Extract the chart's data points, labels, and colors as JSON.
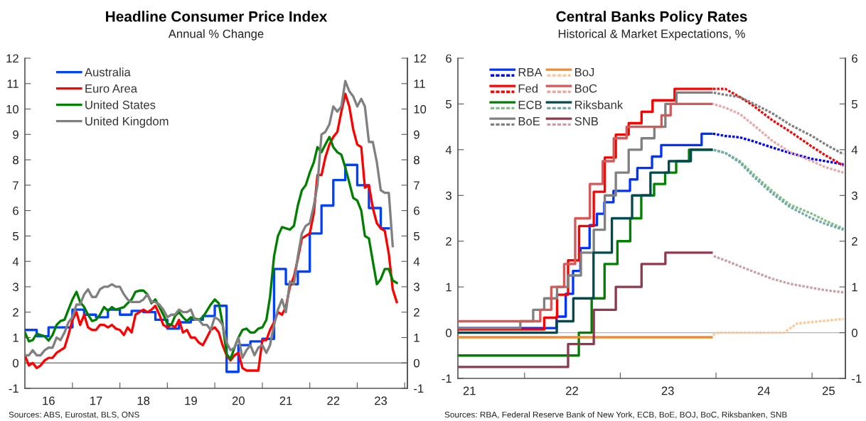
{
  "chart_data": [
    {
      "type": "line",
      "title": "Headline Consumer Price Index",
      "subtitle": "Annual % Change",
      "x": [
        "2016-01",
        "2016-02",
        "2016-03",
        "2016-04",
        "2016-05",
        "2016-06",
        "2016-07",
        "2016-08",
        "2016-09",
        "2016-10",
        "2016-11",
        "2016-12",
        "2017-01",
        "2017-02",
        "2017-03",
        "2017-04",
        "2017-05",
        "2017-06",
        "2017-07",
        "2017-08",
        "2017-09",
        "2017-10",
        "2017-11",
        "2017-12",
        "2018-01",
        "2018-02",
        "2018-03",
        "2018-04",
        "2018-05",
        "2018-06",
        "2018-07",
        "2018-08",
        "2018-09",
        "2018-10",
        "2018-11",
        "2018-12",
        "2019-01",
        "2019-02",
        "2019-03",
        "2019-04",
        "2019-05",
        "2019-06",
        "2019-07",
        "2019-08",
        "2019-09",
        "2019-10",
        "2019-11",
        "2019-12",
        "2020-01",
        "2020-02",
        "2020-03",
        "2020-04",
        "2020-05",
        "2020-06",
        "2020-07",
        "2020-08",
        "2020-09",
        "2020-10",
        "2020-11",
        "2020-12",
        "2021-01",
        "2021-02",
        "2021-03",
        "2021-04",
        "2021-05",
        "2021-06",
        "2021-07",
        "2021-08",
        "2021-09",
        "2021-10",
        "2021-11",
        "2021-12",
        "2022-01",
        "2022-02",
        "2022-03",
        "2022-04",
        "2022-05",
        "2022-06",
        "2022-07",
        "2022-08",
        "2022-09",
        "2022-10",
        "2022-11",
        "2022-12",
        "2023-01",
        "2023-02",
        "2023-03",
        "2023-04",
        "2023-05",
        "2023-06",
        "2023-07",
        "2023-08",
        "2023-09",
        "2023-10",
        "2023-11"
      ],
      "series": [
        {
          "name": "Australia",
          "color": "#0040ff",
          "type": "step",
          "x": [
            "2016-01",
            "2016-04",
            "2016-07",
            "2016-10",
            "2017-01",
            "2017-04",
            "2017-07",
            "2017-10",
            "2018-01",
            "2018-04",
            "2018-07",
            "2018-10",
            "2019-01",
            "2019-04",
            "2019-07",
            "2019-10",
            "2020-01",
            "2020-04",
            "2020-07",
            "2020-10",
            "2021-01",
            "2021-04",
            "2021-07",
            "2021-10",
            "2022-01",
            "2022-04",
            "2022-07",
            "2022-10",
            "2023-01",
            "2023-04",
            "2023-07",
            "2023-09"
          ],
          "values": [
            1.3,
            1.05,
            1.4,
            1.4,
            2.1,
            1.9,
            1.8,
            2.1,
            1.9,
            2.05,
            2.0,
            1.7,
            1.35,
            1.6,
            1.7,
            1.85,
            2.25,
            -0.35,
            0.7,
            0.85,
            0.95,
            3.7,
            3.1,
            3.6,
            5.1,
            6.2,
            7.2,
            7.8,
            7.0,
            6.1,
            5.3,
            5.3
          ]
        },
        {
          "name": "Euro Area",
          "color": "#ff0000",
          "values": [
            0.3,
            -0.1,
            0.0,
            -0.2,
            -0.1,
            0.1,
            0.2,
            0.2,
            0.4,
            0.5,
            0.6,
            1.1,
            1.7,
            2.0,
            1.5,
            1.9,
            1.4,
            1.3,
            1.3,
            1.5,
            1.5,
            1.4,
            1.5,
            1.35,
            1.3,
            1.1,
            1.4,
            1.2,
            1.9,
            2.0,
            2.1,
            2.0,
            2.1,
            2.25,
            1.9,
            1.5,
            1.4,
            1.5,
            1.4,
            1.7,
            1.2,
            1.3,
            1.0,
            1.0,
            0.8,
            0.7,
            1.0,
            1.3,
            1.4,
            1.2,
            0.7,
            0.3,
            0.1,
            0.3,
            0.4,
            -0.2,
            -0.3,
            -0.3,
            -0.3,
            -0.3,
            0.9,
            0.9,
            1.3,
            1.6,
            2.0,
            1.9,
            2.2,
            3.0,
            3.4,
            4.1,
            4.9,
            5.0,
            5.1,
            5.9,
            7.4,
            7.4,
            8.1,
            8.6,
            8.9,
            9.1,
            9.9,
            10.6,
            10.1,
            9.2,
            8.6,
            8.5,
            6.9,
            7.0,
            6.1,
            5.5,
            5.3,
            5.2,
            4.3,
            2.9,
            2.4
          ]
        },
        {
          "name": "United States",
          "color": "#008000",
          "values": [
            1.2,
            0.85,
            0.9,
            1.15,
            1.1,
            1.05,
            0.88,
            1.1,
            1.5,
            1.65,
            1.7,
            2.1,
            2.5,
            2.8,
            2.4,
            2.2,
            1.9,
            1.65,
            1.7,
            1.9,
            2.2,
            2.05,
            2.2,
            2.1,
            2.15,
            2.2,
            2.35,
            2.5,
            2.8,
            2.85,
            2.85,
            2.7,
            2.35,
            2.5,
            2.2,
            1.9,
            1.55,
            1.5,
            1.85,
            2.0,
            1.8,
            1.65,
            1.8,
            1.75,
            1.7,
            1.8,
            2.05,
            2.3,
            2.5,
            2.35,
            1.55,
            0.35,
            0.15,
            0.6,
            1.0,
            1.3,
            1.35,
            1.2,
            1.2,
            1.35,
            1.4,
            1.7,
            2.6,
            4.2,
            5.0,
            5.35,
            5.3,
            5.25,
            5.4,
            6.2,
            6.8,
            7.0,
            7.5,
            7.9,
            8.5,
            8.3,
            8.6,
            8.9,
            8.5,
            8.3,
            8.2,
            7.7,
            7.1,
            6.5,
            6.4,
            6.0,
            5.0,
            4.9,
            4.0,
            3.1,
            3.3,
            3.7,
            3.7,
            3.25,
            3.15
          ]
        },
        {
          "name": "United Kingdom",
          "color": "#808080",
          "values": [
            0.3,
            0.3,
            0.5,
            0.3,
            0.3,
            0.5,
            0.6,
            0.6,
            1.0,
            0.9,
            1.2,
            1.6,
            1.8,
            2.3,
            2.3,
            2.7,
            2.9,
            2.6,
            2.6,
            2.9,
            3.0,
            3.0,
            3.1,
            3.0,
            3.0,
            2.7,
            2.5,
            2.4,
            2.4,
            2.4,
            2.5,
            2.7,
            2.4,
            2.4,
            2.3,
            2.1,
            1.8,
            1.9,
            1.9,
            2.1,
            2.0,
            2.0,
            2.1,
            1.7,
            1.7,
            1.5,
            1.5,
            1.3,
            1.8,
            1.7,
            1.5,
            0.8,
            0.5,
            0.6,
            1.0,
            0.2,
            0.5,
            0.7,
            0.3,
            0.6,
            0.7,
            0.4,
            0.7,
            1.5,
            2.1,
            2.5,
            2.0,
            3.2,
            3.1,
            4.2,
            5.1,
            5.4,
            5.5,
            6.2,
            7.0,
            9.0,
            9.1,
            9.4,
            10.1,
            9.9,
            10.1,
            11.1,
            10.7,
            10.5,
            10.1,
            10.4,
            10.1,
            8.7,
            8.7,
            7.9,
            6.8,
            6.7,
            6.7,
            4.6,
            null
          ]
        }
      ],
      "xlim": [
        "2016-01-01",
        "2024-01-22"
      ],
      "xticks": [
        {
          "value": "2016-07-01",
          "label": "16"
        },
        {
          "value": "2017-01-01",
          "label": null
        },
        {
          "value": "2017-07-01",
          "label": "17"
        },
        {
          "value": "2018-01-01",
          "label": null
        },
        {
          "value": "2018-07-01",
          "label": "18"
        },
        {
          "value": "2019-01-01",
          "label": null
        },
        {
          "value": "2019-07-01",
          "label": "19"
        },
        {
          "value": "2020-01-01",
          "label": null
        },
        {
          "value": "2020-07-01",
          "label": "20"
        },
        {
          "value": "2021-01-01",
          "label": null
        },
        {
          "value": "2021-07-01",
          "label": "21"
        },
        {
          "value": "2022-01-01",
          "label": null
        },
        {
          "value": "2022-07-01",
          "label": "22"
        },
        {
          "value": "2023-01-01",
          "label": null
        },
        {
          "value": "2023-07-01",
          "label": "23"
        },
        {
          "value": "2024-01-01",
          "label": null
        }
      ],
      "ylim": [
        -1,
        12
      ],
      "yticks": [
        -1,
        0,
        1,
        2,
        3,
        4,
        5,
        6,
        7,
        8,
        9,
        10,
        11,
        12
      ],
      "y2lim": [
        -1,
        12
      ],
      "y2ticks": [
        -1,
        0,
        1,
        2,
        3,
        4,
        5,
        6,
        7,
        8,
        9,
        10,
        11,
        12
      ],
      "ref_lines": [
        {
          "axis": "y",
          "value": 0,
          "color": "#808080"
        }
      ],
      "legend": "top left",
      "line_style": "solid",
      "annotations": [
        "Sources: ABS, Eurostat, BLS, ONS"
      ]
    },
    {
      "type": "step",
      "title": "Central Banks Policy Rates",
      "subtitle": "Historical & Market Expectations, %",
      "series": [
        {
          "name": "RBA",
          "color": "#0033ff",
          "x": [
            "2021-04-23",
            "2022-05-03",
            "2022-06-07",
            "2022-07-05",
            "2022-08-02",
            "2022-09-06",
            "2022-10-04",
            "2022-11-01",
            "2022-12-06",
            "2023-02-07",
            "2023-03-07",
            "2023-05-02",
            "2023-06-06",
            "2023-11-07",
            "2023-12-15"
          ],
          "values": [
            0.1,
            0.35,
            0.85,
            1.35,
            1.85,
            2.35,
            2.6,
            2.85,
            3.1,
            3.35,
            3.6,
            3.85,
            4.1,
            4.35,
            4.35
          ]
        },
        {
          "type": "line",
          "line_style": "dashed",
          "color": "#0000ff",
          "x": [
            "2023-12-20",
            "2024-02-05",
            "2024-04-01",
            "2024-05-25",
            "2024-08-01",
            "2024-10-08",
            "2024-12-31",
            "2025-02-20",
            "2025-05-01"
          ],
          "values": [
            4.35,
            4.3,
            4.27,
            4.18,
            4.05,
            3.93,
            3.8,
            3.75,
            3.68
          ]
        },
        {
          "name": "Fed",
          "color": "#ff0000",
          "x": [
            "2021-04-23",
            "2022-03-17",
            "2022-05-05",
            "2022-06-16",
            "2022-07-28",
            "2022-09-22",
            "2022-11-03",
            "2022-12-15",
            "2023-02-02",
            "2023-03-23",
            "2023-05-04",
            "2023-07-27",
            "2023-12-15"
          ],
          "values": [
            0.07,
            0.33,
            0.83,
            1.58,
            2.33,
            3.08,
            3.83,
            4.33,
            4.58,
            4.83,
            5.08,
            5.33,
            5.33
          ]
        },
        {
          "type": "line",
          "line_style": "dashed",
          "color": "#ff0000",
          "x": [
            "2023-12-20",
            "2024-02-05",
            "2024-04-01",
            "2024-05-25",
            "2024-08-01",
            "2024-10-08",
            "2024-12-31",
            "2025-02-20",
            "2025-05-01"
          ],
          "values": [
            5.33,
            5.33,
            5.15,
            4.95,
            4.65,
            4.4,
            4.07,
            3.88,
            3.65
          ]
        },
        {
          "name": "ECB",
          "color": "#008000",
          "x": [
            "2021-04-23",
            "2022-07-27",
            "2022-09-14",
            "2022-11-02",
            "2022-12-21",
            "2023-02-08",
            "2023-03-22",
            "2023-05-10",
            "2023-06-21",
            "2023-08-02",
            "2023-09-20",
            "2023-12-15"
          ],
          "values": [
            -0.5,
            0.0,
            0.75,
            1.5,
            2.0,
            2.5,
            3.0,
            3.25,
            3.5,
            3.75,
            4.0,
            4.0
          ]
        },
        {
          "type": "line",
          "line_style": "dashed",
          "color": "#80c080",
          "x": [
            "2023-12-20",
            "2024-02-05",
            "2024-04-01",
            "2024-05-25",
            "2024-08-01",
            "2024-10-08",
            "2024-12-31",
            "2025-02-20",
            "2025-05-01"
          ],
          "values": [
            4.0,
            3.93,
            3.75,
            3.45,
            3.1,
            2.8,
            2.6,
            2.45,
            2.27
          ]
        },
        {
          "name": "BoE",
          "color": "#808080",
          "x": [
            "2021-04-23",
            "2021-12-16",
            "2022-02-03",
            "2022-03-17",
            "2022-05-05",
            "2022-06-16",
            "2022-08-04",
            "2022-09-22",
            "2022-11-03",
            "2022-12-15",
            "2023-02-02",
            "2023-03-23",
            "2023-05-11",
            "2023-06-22",
            "2023-08-03",
            "2023-12-15"
          ],
          "values": [
            0.1,
            0.25,
            0.5,
            0.75,
            1.0,
            1.25,
            1.75,
            2.25,
            3.0,
            3.5,
            4.0,
            4.25,
            4.5,
            5.0,
            5.25,
            5.25
          ]
        },
        {
          "type": "line",
          "line_style": "dashed",
          "color": "#808080",
          "x": [
            "2023-12-20",
            "2024-02-05",
            "2024-04-01",
            "2024-05-25",
            "2024-08-01",
            "2024-10-08",
            "2024-12-31",
            "2025-02-20",
            "2025-05-01"
          ],
          "values": [
            5.25,
            5.2,
            5.15,
            5.0,
            4.8,
            4.55,
            4.3,
            4.12,
            3.9
          ]
        },
        {
          "name": "BoJ",
          "color": "#f28a30",
          "x": [
            "2021-04-23",
            "2023-12-15"
          ],
          "values": [
            -0.1,
            -0.1
          ]
        },
        {
          "type": "line",
          "line_style": "dashed",
          "color": "#ffc896",
          "x": [
            "2023-12-20",
            "2024-01-10",
            "2024-09-15",
            "2024-11-05",
            "2025-05-01"
          ],
          "values": [
            -0.05,
            0.0,
            0.0,
            0.2,
            0.3
          ]
        },
        {
          "name": "BoC",
          "color": "#d45a5a",
          "x": [
            "2021-04-23",
            "2022-03-02",
            "2022-04-13",
            "2022-06-01",
            "2022-07-13",
            "2022-09-07",
            "2022-10-26",
            "2022-12-07",
            "2023-01-25",
            "2023-06-07",
            "2023-07-12",
            "2023-12-15"
          ],
          "values": [
            0.25,
            0.5,
            1.0,
            1.5,
            2.5,
            3.25,
            3.75,
            4.25,
            4.5,
            4.75,
            5.0,
            5.0
          ]
        },
        {
          "type": "line",
          "line_style": "dashed",
          "color": "#e8a8a8",
          "x": [
            "2023-12-20",
            "2024-02-05",
            "2024-04-01",
            "2024-05-25",
            "2024-08-01",
            "2024-10-08",
            "2024-12-31",
            "2025-02-20",
            "2025-05-01"
          ],
          "values": [
            5.0,
            4.92,
            4.78,
            4.53,
            4.2,
            3.95,
            3.75,
            3.62,
            3.5
          ]
        },
        {
          "name": "Riksbank",
          "color": "#004a50",
          "x": [
            "2021-04-23",
            "2022-05-04",
            "2022-07-06",
            "2022-09-21",
            "2022-11-30",
            "2023-02-15",
            "2023-04-26",
            "2023-07-05",
            "2023-09-27",
            "2023-12-15"
          ],
          "values": [
            0.0,
            0.25,
            0.75,
            1.75,
            2.5,
            3.0,
            3.5,
            3.75,
            4.0,
            4.0
          ]
        },
        {
          "type": "line",
          "line_style": "dashed",
          "color": "#70a8b0",
          "x": [
            "2023-12-20",
            "2024-02-05",
            "2024-04-01",
            "2024-05-25",
            "2024-08-01",
            "2024-10-08",
            "2024-12-31",
            "2025-02-20",
            "2025-05-01"
          ],
          "values": [
            4.0,
            3.93,
            3.72,
            3.4,
            3.05,
            2.75,
            2.5,
            2.38,
            2.25
          ]
        },
        {
          "name": "SNB",
          "color": "#8e3a4e",
          "x": [
            "2021-04-23",
            "2022-06-16",
            "2022-09-22",
            "2022-12-15",
            "2023-03-23",
            "2023-06-22",
            "2023-12-15"
          ],
          "values": [
            -0.75,
            -0.25,
            0.5,
            1.0,
            1.5,
            1.75,
            1.75
          ]
        },
        {
          "type": "line",
          "line_style": "dashed",
          "color": "#c8a0a8",
          "x": [
            "2023-12-20",
            "2024-02-05",
            "2024-04-01",
            "2024-05-25",
            "2024-08-01",
            "2024-10-08",
            "2024-12-31",
            "2025-02-20",
            "2025-05-01"
          ],
          "values": [
            1.68,
            1.58,
            1.45,
            1.33,
            1.18,
            1.07,
            0.98,
            0.93,
            0.88
          ]
        }
      ],
      "xlim": [
        "2021-04-22",
        "2025-05-08"
      ],
      "xticks": [
        {
          "value": "2021-06-05",
          "label": "21"
        },
        {
          "value": "2022-01-01",
          "label": null
        },
        {
          "value": "2022-07-01",
          "label": "22"
        },
        {
          "value": "2023-01-01",
          "label": null
        },
        {
          "value": "2023-07-01",
          "label": "23"
        },
        {
          "value": "2024-01-01",
          "label": null
        },
        {
          "value": "2024-07-01",
          "label": "24"
        },
        {
          "value": "2025-01-01",
          "label": null
        },
        {
          "value": "2025-03-05",
          "label": "25"
        }
      ],
      "ylim": [
        -1,
        6
      ],
      "yticks": [
        -1,
        0,
        1,
        2,
        3,
        4,
        5,
        6
      ],
      "y2lim": [
        -1,
        6
      ],
      "y2ticks": [
        -1,
        0,
        1,
        2,
        3,
        4,
        5,
        6
      ],
      "ref_lines": [
        {
          "axis": "y",
          "value": 0,
          "color": "#b4b4b4"
        }
      ],
      "legend": "top left",
      "line_style": "solid",
      "annotations": [
        "Sources: RBA, Federal Reserve Bank of New York, ECB, BoE, BOJ, BoC, Riksbanken, SNB"
      ]
    }
  ]
}
